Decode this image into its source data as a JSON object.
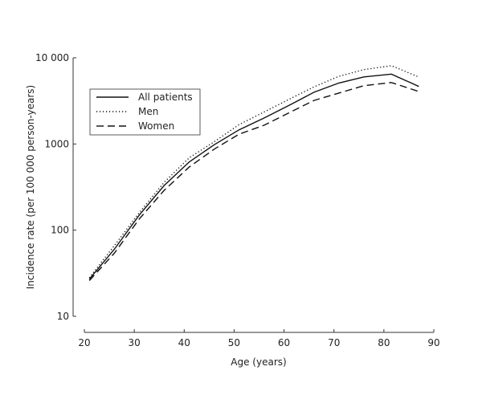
{
  "chart_data": {
    "type": "line",
    "title": "",
    "xlabel": "Age (years)",
    "ylabel": "Incidence rate (per 100 000 person-years)",
    "xlim": [
      20,
      90
    ],
    "ylim": [
      10,
      10000
    ],
    "yscale": "log",
    "grid": false,
    "legend_position": "top-left",
    "x_ticks": [
      "20",
      "30",
      "40",
      "50",
      "60",
      "70",
      "80",
      "90"
    ],
    "x_tick_values": [
      20,
      30,
      40,
      50,
      60,
      70,
      80,
      90
    ],
    "y_ticks": [
      "10",
      "100",
      "1000",
      "10 000"
    ],
    "y_tick_values": [
      10,
      100,
      1000,
      10000
    ],
    "x": [
      21,
      26,
      31,
      36,
      41,
      46,
      51,
      56,
      61,
      66,
      71,
      76,
      81.5,
      87
    ],
    "series": [
      {
        "name": "All patients",
        "style": "solid",
        "values": [
          27,
          60,
          150,
          330,
          618,
          980,
          1460,
          2000,
          2800,
          3980,
          5100,
          6000,
          6470,
          4650
        ]
      },
      {
        "name": "Men",
        "style": "dotted",
        "values": [
          28,
          66,
          160,
          360,
          690,
          1060,
          1680,
          2350,
          3300,
          4600,
          6100,
          7300,
          8100,
          5980
        ]
      },
      {
        "name": "Women",
        "style": "dashed",
        "values": [
          26,
          54,
          135,
          290,
          540,
          870,
          1300,
          1650,
          2300,
          3200,
          3900,
          4750,
          5170,
          4060
        ]
      }
    ]
  }
}
